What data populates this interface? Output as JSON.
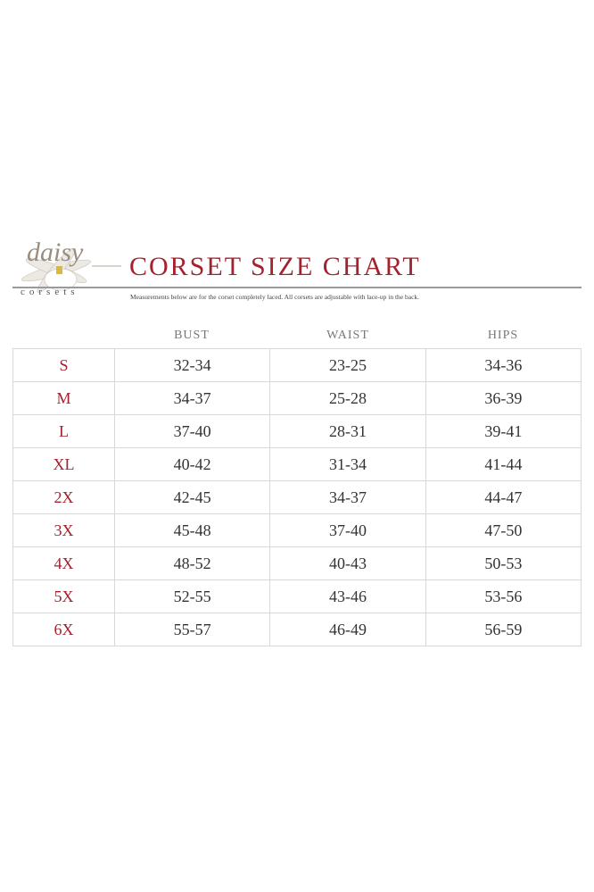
{
  "logo": {
    "script": "daisy",
    "sub": "corsets"
  },
  "title": "CORSET SIZE CHART",
  "note": "Measurements below are for the corset completely laced.  All corsets are adjustable with lace-up in the back.",
  "columns": [
    "BUST",
    "WAIST",
    "HIPS"
  ],
  "rows": [
    {
      "size": "S",
      "bust": "32-34",
      "waist": "23-25",
      "hips": "34-36"
    },
    {
      "size": "M",
      "bust": "34-37",
      "waist": "25-28",
      "hips": "36-39"
    },
    {
      "size": "L",
      "bust": "37-40",
      "waist": "28-31",
      "hips": "39-41"
    },
    {
      "size": "XL",
      "bust": "40-42",
      "waist": "31-34",
      "hips": "41-44"
    },
    {
      "size": "2X",
      "bust": "42-45",
      "waist": "34-37",
      "hips": "44-47"
    },
    {
      "size": "3X",
      "bust": "45-48",
      "waist": "37-40",
      "hips": "47-50"
    },
    {
      "size": "4X",
      "bust": "48-52",
      "waist": "40-43",
      "hips": "50-53"
    },
    {
      "size": "5X",
      "bust": "52-55",
      "waist": "43-46",
      "hips": "53-56"
    },
    {
      "size": "6X",
      "bust": "55-57",
      "waist": "46-49",
      "hips": "56-59"
    }
  ],
  "colors": {
    "accent": "#a3222e",
    "grid": "#d8d8d8"
  }
}
